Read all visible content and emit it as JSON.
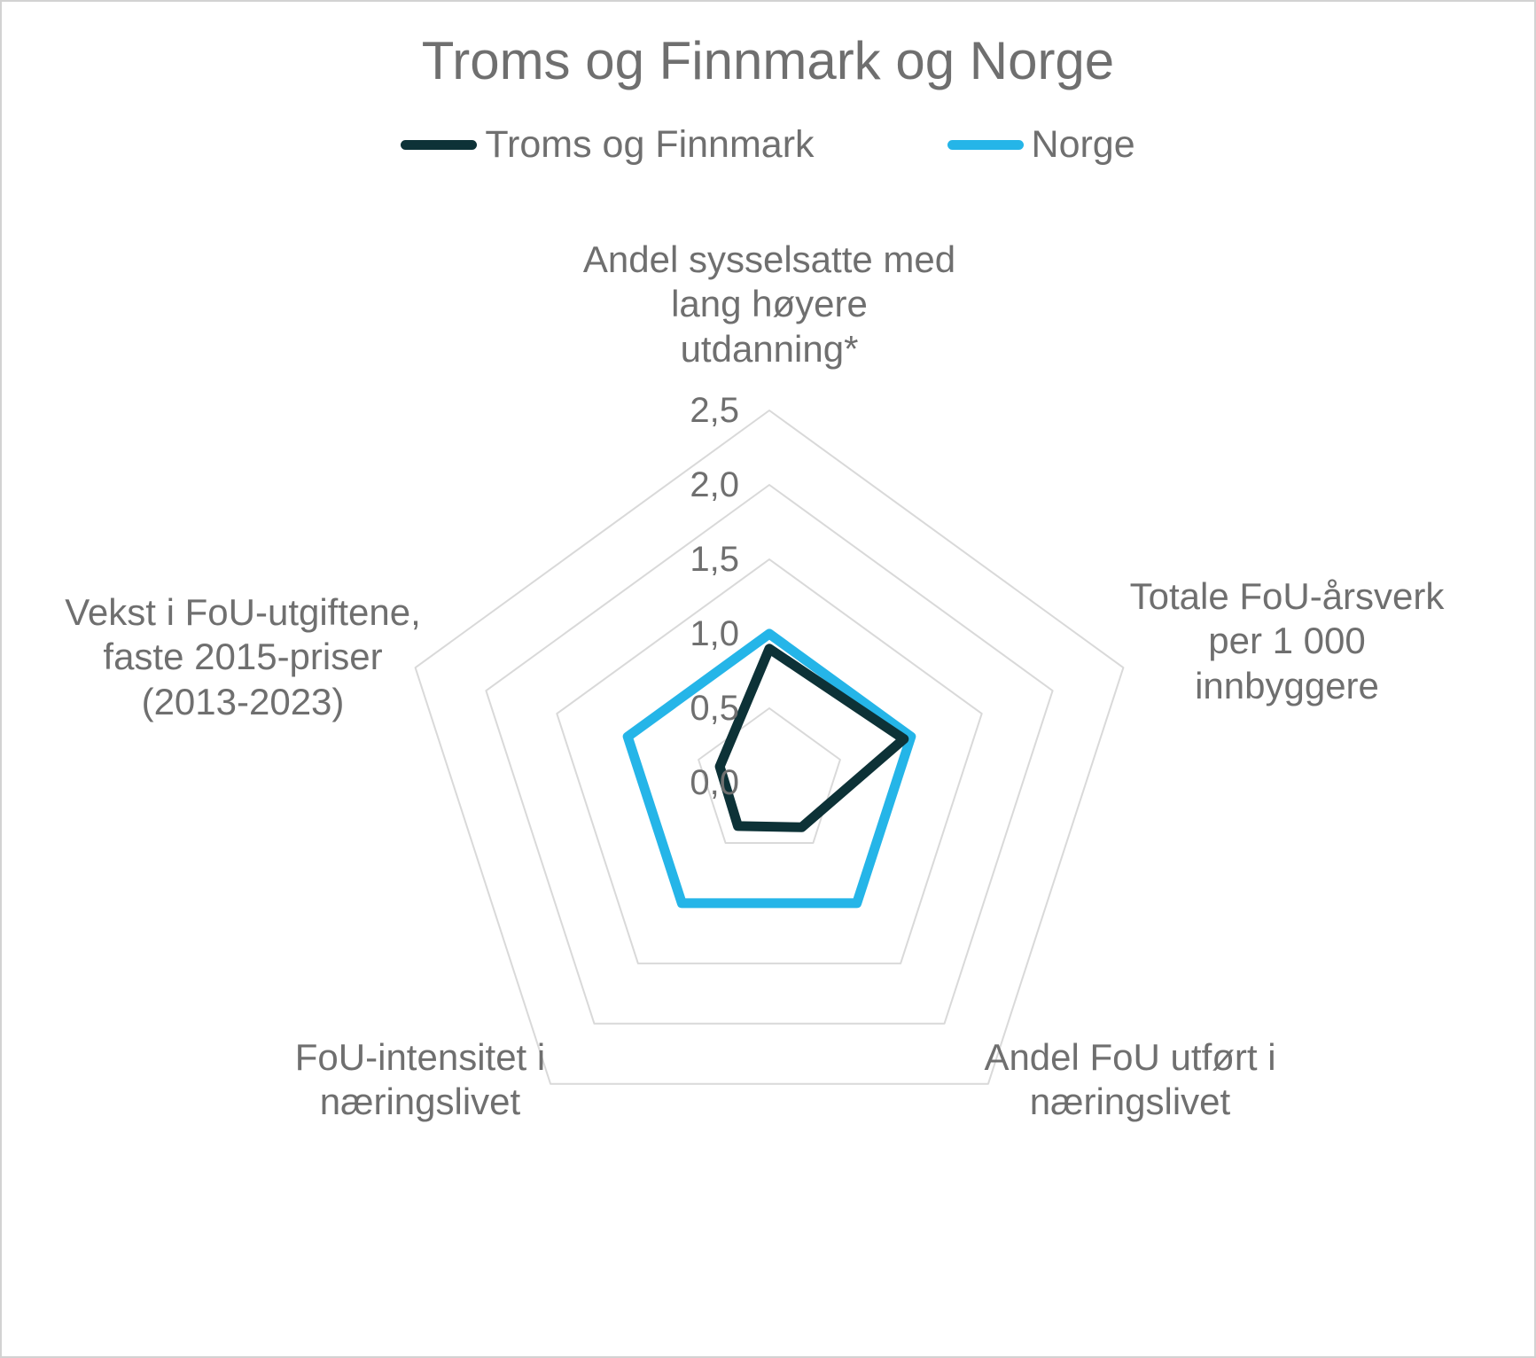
{
  "frame": {
    "background_color": "#ffffff",
    "border_color": "#d2d2d2",
    "text_color": "#6f6f6f"
  },
  "title": "Troms og Finnmark og Norge",
  "legend": [
    {
      "label": "Troms og Finnmark",
      "color": "#0d3237"
    },
    {
      "label": "Norge",
      "color": "#25b5e8"
    }
  ],
  "axis_labels": [
    {
      "text": "Andel sysselsatte med\nlang høyere\nutdanning*"
    },
    {
      "text": "Totale FoU-årsverk\nper 1 000 innbyggere"
    },
    {
      "text": "Andel FoU utført i\nnæringslivet"
    },
    {
      "text": "FoU-intensitet i\nnæringslivet"
    },
    {
      "text": "Vekst i FoU-utgiftene,\nfaste 2015-priser\n(2013-2023)"
    }
  ],
  "chart_data": {
    "type": "radar",
    "categories": [
      "Andel sysselsatte med lang høyere utdanning*",
      "Totale FoU-årsverk per 1 000 innbyggere",
      "Andel FoU utført i næringslivet",
      "FoU-intensitet i næringslivet",
      "Vekst i FoU-utgiftene, faste 2015-priser (2013-2023)"
    ],
    "series": [
      {
        "name": "Troms og Finnmark",
        "color": "#0d3237",
        "values": [
          0.9,
          0.95,
          0.37,
          0.36,
          0.35
        ]
      },
      {
        "name": "Norge",
        "color": "#25b5e8",
        "values": [
          1.0,
          1.0,
          1.0,
          1.0,
          1.0
        ]
      }
    ],
    "r_axis": {
      "min": 0,
      "max": 2.5,
      "tick_interval": 0.5,
      "tick_labels": [
        "0,0",
        "0,5",
        "1,0",
        "1,5",
        "2,0",
        "2,5"
      ]
    },
    "gridline_levels": [
      0.5,
      1.0,
      1.5,
      2.0,
      2.5
    ],
    "grid_color": "#d9d9d9",
    "grid_shape": "pentagon",
    "radial_spokes": false,
    "legend_position": "top",
    "title": "Troms og Finnmark og Norge"
  }
}
